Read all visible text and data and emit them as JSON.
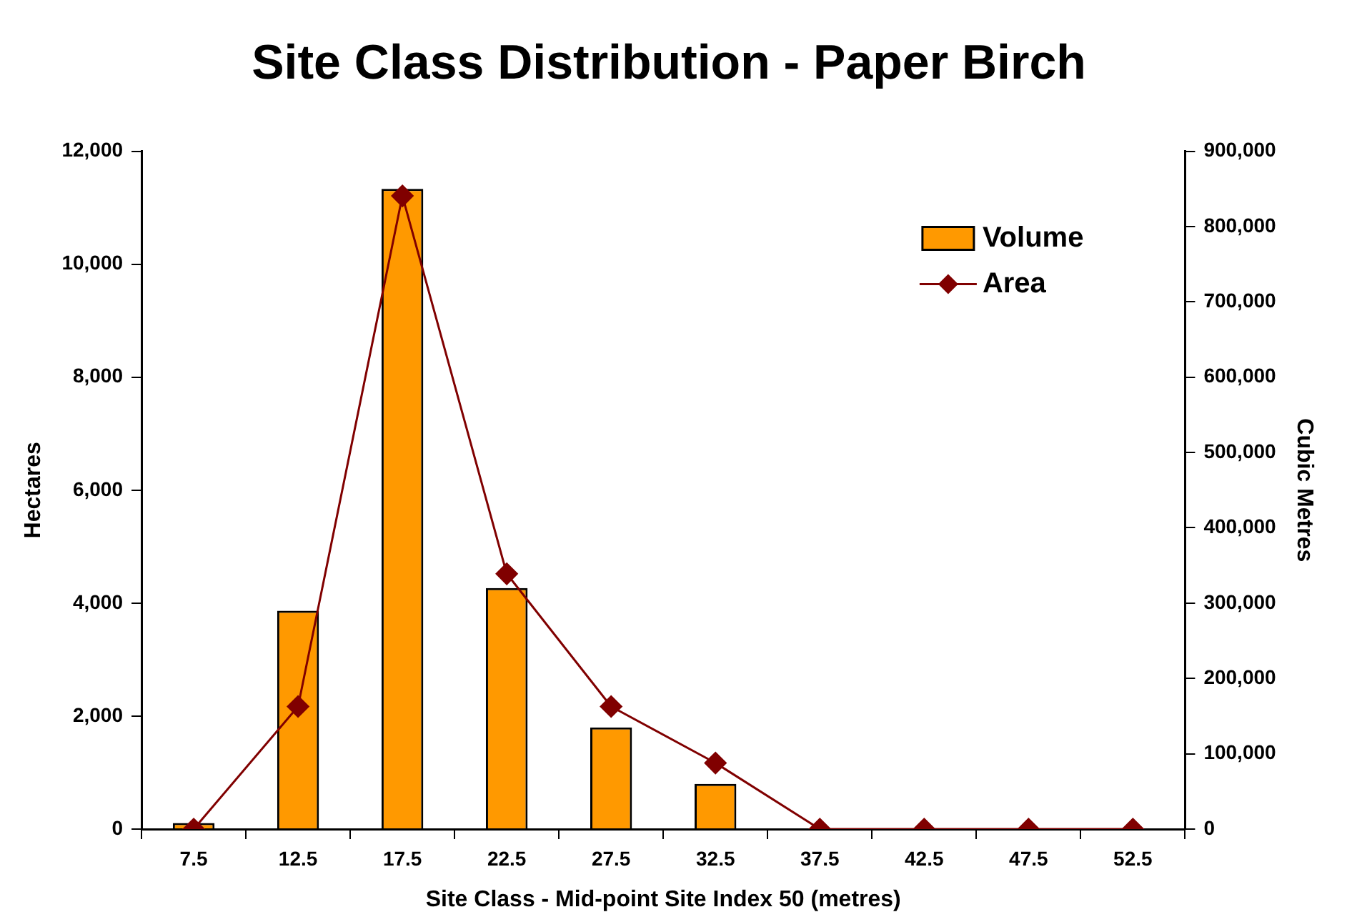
{
  "chart_data": {
    "type": "bar",
    "title": "Site Class Distribution - Paper Birch",
    "xlabel": "Site Class - Mid-point Site Index 50 (metres)",
    "ylabel": "Hectares",
    "y2label": "Cubic Metres",
    "categories": [
      "7.5",
      "12.5",
      "17.5",
      "22.5",
      "27.5",
      "32.5",
      "37.5",
      "42.5",
      "47.5",
      "52.5"
    ],
    "series": [
      {
        "name": "Volume",
        "axis": "y2",
        "color": "#ff9900",
        "values": [
          8000,
          290000,
          850000,
          320000,
          135000,
          60000,
          0,
          0,
          0,
          0
        ]
      },
      {
        "name": "Area",
        "type": "line",
        "color": "#800000",
        "marker": "diamond",
        "values": [
          0,
          2170,
          11210,
          4520,
          2170,
          1170,
          0,
          0,
          0,
          0
        ]
      }
    ],
    "ylim": [
      0,
      12000
    ],
    "yticks": [
      0,
      {
        "value": 2000,
        "label": "2,000"
      },
      {
        "value": 4000,
        "label": "4,000"
      },
      {
        "value": 6000,
        "label": "6,000"
      },
      {
        "value": 8000,
        "label": "8,000"
      },
      {
        "value": 10000,
        "label": "10,000"
      },
      {
        "value": 12000,
        "label": "12,000"
      }
    ],
    "y2lim": [
      0,
      900000
    ],
    "y2ticks": [
      0,
      {
        "value": 100000,
        "label": "100,000"
      },
      {
        "value": 200000,
        "label": "200,000"
      },
      {
        "value": 300000,
        "label": "300,000"
      },
      {
        "value": 400000,
        "label": "400,000"
      },
      {
        "value": 500000,
        "label": "500,000"
      },
      {
        "value": 600000,
        "label": "600,000"
      },
      {
        "value": 700000,
        "label": "700,000"
      },
      {
        "value": 800000,
        "label": "800,000"
      },
      {
        "value": 900000,
        "label": "900,000"
      }
    ],
    "grid": false,
    "legend": "top right"
  }
}
